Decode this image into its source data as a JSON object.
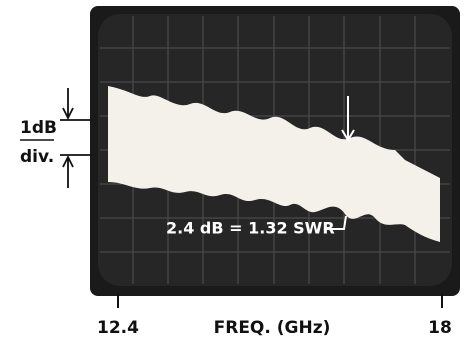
{
  "scale": {
    "unit": "1dB",
    "per": "div."
  },
  "annotation": "2.4 dB = 1.32 SWR",
  "x_axis": {
    "start": "12.4",
    "label": "FREQ. (GHz)",
    "end": "18"
  }
}
